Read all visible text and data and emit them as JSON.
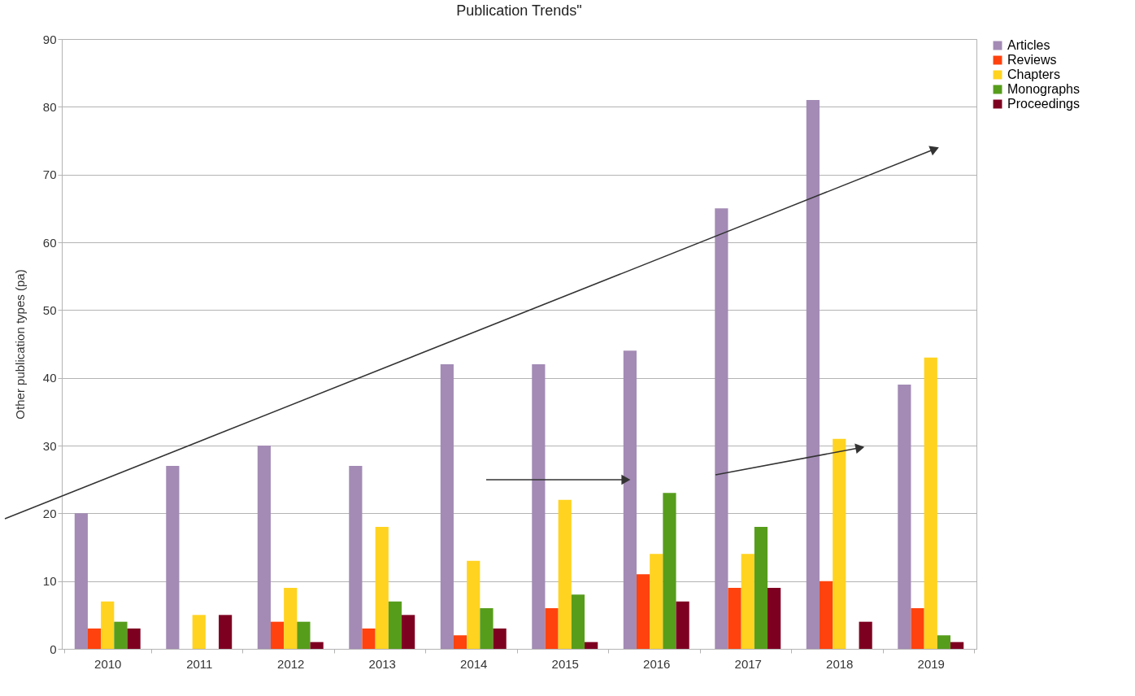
{
  "chart_data": {
    "type": "bar",
    "title": "Publication Trends\"",
    "ylabel": "Other publication types (pa)",
    "categories": [
      "2010",
      "2011",
      "2012",
      "2013",
      "2014",
      "2015",
      "2016",
      "2017",
      "2018",
      "2019"
    ],
    "series": [
      {
        "name": "Articles",
        "color": "#a38bb5",
        "values": [
          20,
          27,
          30,
          27,
          42,
          42,
          44,
          65,
          81,
          39
        ]
      },
      {
        "name": "Reviews",
        "color": "#ff420e",
        "values": [
          3,
          0,
          4,
          3,
          2,
          6,
          11,
          9,
          10,
          6
        ]
      },
      {
        "name": "Chapters",
        "color": "#ffd320",
        "values": [
          7,
          5,
          9,
          18,
          13,
          22,
          14,
          14,
          31,
          43
        ]
      },
      {
        "name": "Monographs",
        "color": "#579d1c",
        "values": [
          4,
          0,
          4,
          7,
          6,
          8,
          23,
          18,
          0,
          2
        ]
      },
      {
        "name": "Proceedings",
        "color": "#7e0021",
        "values": [
          3,
          5,
          1,
          5,
          3,
          1,
          7,
          9,
          4,
          1
        ]
      }
    ],
    "ylim": [
      0,
      90
    ],
    "yticks": [
      0,
      10,
      20,
      30,
      40,
      50,
      60,
      70,
      80,
      90
    ],
    "grid": "y",
    "legend": "right"
  }
}
